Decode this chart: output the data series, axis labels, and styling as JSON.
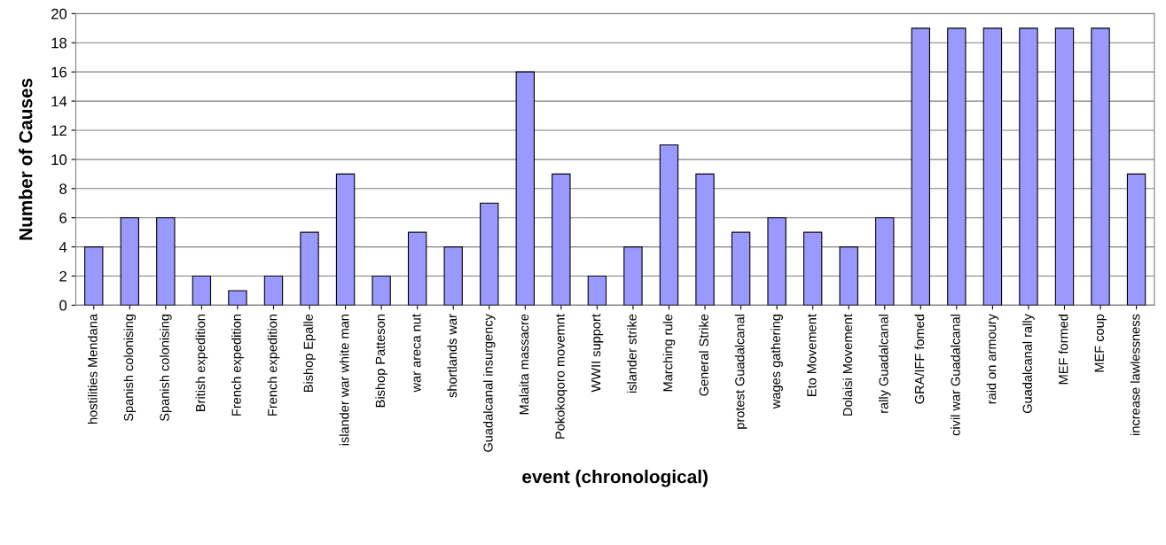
{
  "chart_data": {
    "type": "bar",
    "xlabel": "event (chronological)",
    "ylabel": "Number of Causes",
    "categories": [
      "hostilities Mendana",
      "Spanish colonising",
      "Spanish colonising",
      "British expedition",
      "French expedition",
      "French expedition",
      "Bishop Epalle",
      "islander war white man",
      "Bishop Patteson",
      "war areca nut",
      "shortlands war",
      "Guadalcanal insurgency",
      "Malaita massacre",
      "Pokokoqoro movemnt",
      "WWII support",
      "islander strike",
      "Marching rule",
      "General Strike",
      "protest Guadalcanal",
      "wages gathering",
      "Eto Movement",
      "Dolaisi Movement",
      "rally Guadalcanal",
      "GRA/IFF fomed",
      "civil war Guadalcanal",
      "raid on armoury",
      "Guadalcanal rally",
      "MEF formed",
      "MEF coup",
      "increase lawlessness"
    ],
    "values": [
      4,
      6,
      6,
      2,
      1,
      2,
      5,
      9,
      2,
      5,
      4,
      7,
      16,
      9,
      2,
      4,
      11,
      9,
      5,
      6,
      5,
      4,
      6,
      19,
      19,
      19,
      19,
      19,
      19,
      9
    ],
    "color": "#9999ff",
    "ylim": [
      0,
      20
    ],
    "yticks": [
      0,
      2,
      4,
      6,
      8,
      10,
      12,
      14,
      16,
      18,
      20
    ],
    "grid": "y",
    "legend": false
  }
}
